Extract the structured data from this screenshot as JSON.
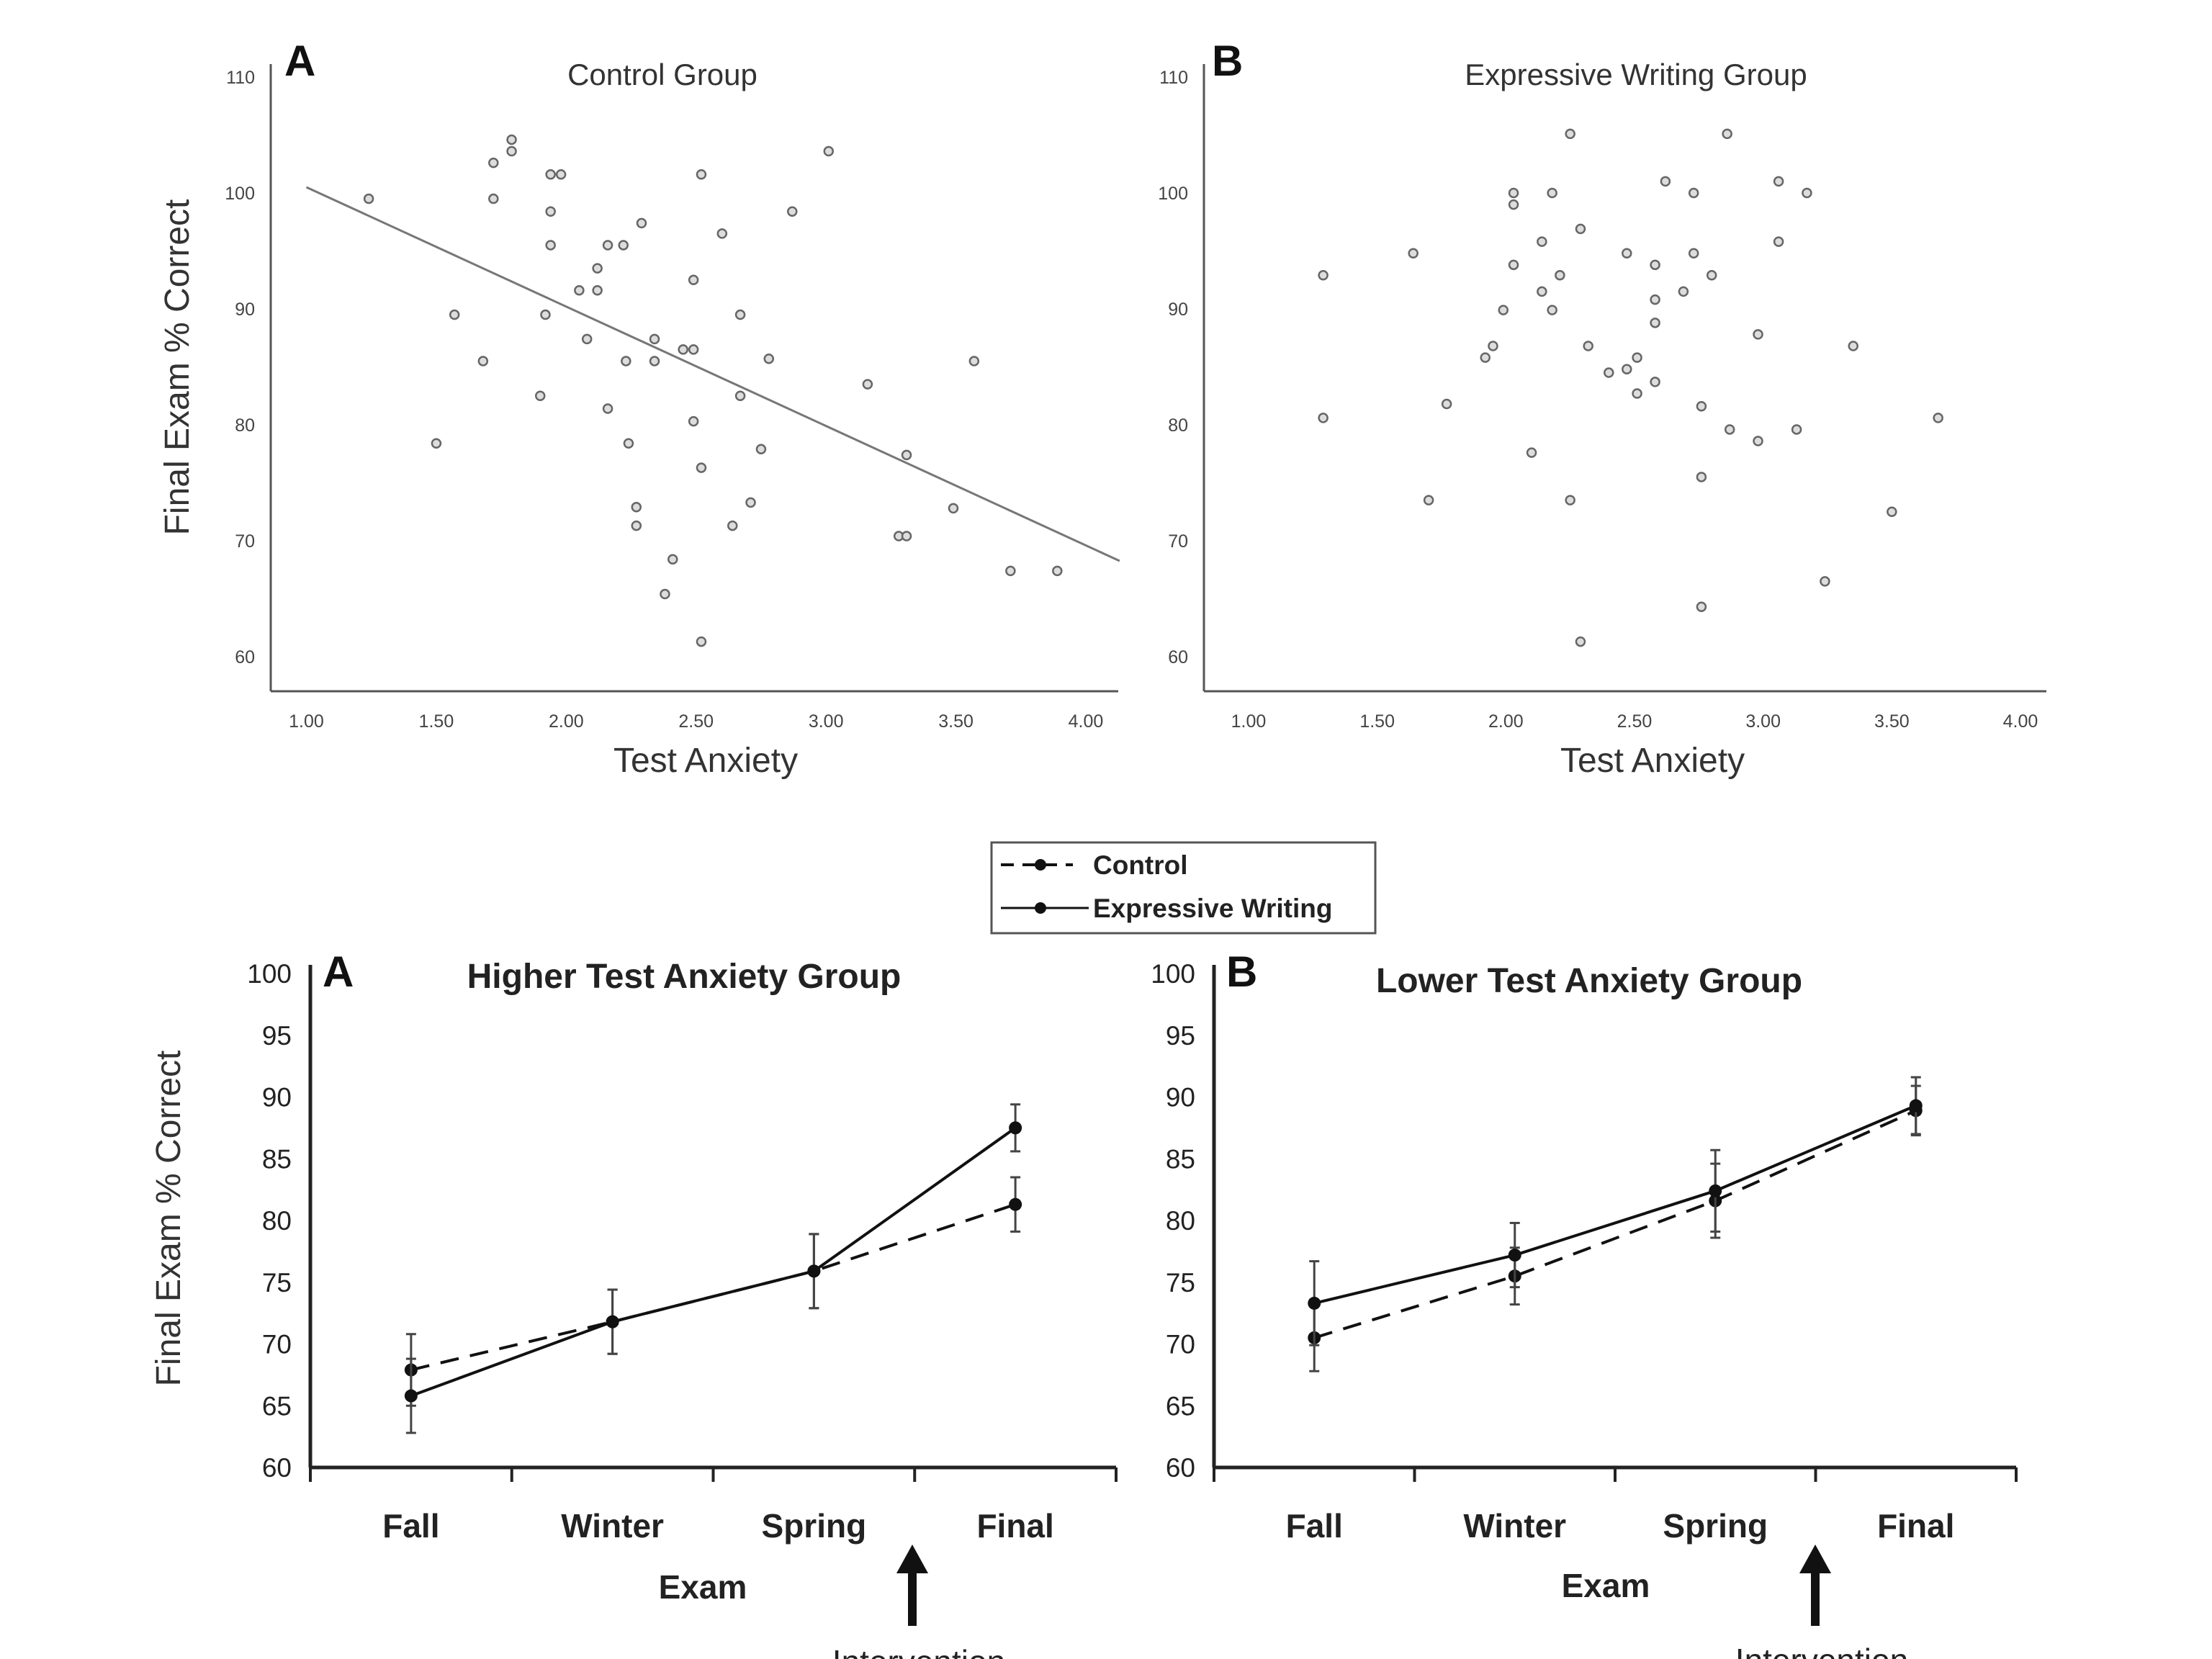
{
  "chart_data": [
    {
      "type": "scatter",
      "panel": "A",
      "title": "Control Group",
      "xlabel": "Test Anxiety",
      "ylabel": "Final Exam % Correct",
      "xlim": [
        0.86,
        4.13
      ],
      "ylim": [
        57.5,
        111
      ],
      "xticks": [
        "1.00",
        "1.50",
        "2.00",
        "2.50",
        "3.00",
        "3.50",
        "4.00"
      ],
      "yticks": [
        "60",
        "70",
        "80",
        "90",
        "100",
        "110"
      ],
      "grid": false,
      "regression_line": {
        "intercept": 110.8,
        "slope": -10.3,
        "x_range": [
          1.0,
          4.13
        ]
      },
      "points": [
        [
          1.24,
          99.5
        ],
        [
          1.72,
          102.6
        ],
        [
          1.79,
          104.6
        ],
        [
          1.79,
          103.6
        ],
        [
          1.72,
          99.5
        ],
        [
          1.94,
          101.6
        ],
        [
          1.98,
          101.6
        ],
        [
          1.94,
          98.4
        ],
        [
          1.94,
          95.5
        ],
        [
          2.29,
          97.4
        ],
        [
          2.16,
          95.5
        ],
        [
          2.22,
          95.5
        ],
        [
          2.12,
          93.5
        ],
        [
          2.05,
          91.6
        ],
        [
          2.12,
          91.6
        ],
        [
          1.57,
          89.5
        ],
        [
          1.92,
          89.5
        ],
        [
          2.49,
          92.5
        ],
        [
          2.6,
          96.5
        ],
        [
          2.52,
          101.6
        ],
        [
          2.87,
          98.4
        ],
        [
          3.01,
          103.6
        ],
        [
          2.08,
          87.4
        ],
        [
          2.34,
          87.4
        ],
        [
          2.45,
          86.5
        ],
        [
          2.49,
          86.5
        ],
        [
          1.68,
          85.5
        ],
        [
          2.23,
          85.5
        ],
        [
          2.34,
          85.5
        ],
        [
          2.67,
          89.5
        ],
        [
          2.78,
          85.7
        ],
        [
          3.16,
          83.5
        ],
        [
          3.57,
          85.5
        ],
        [
          1.9,
          82.5
        ],
        [
          2.67,
          82.5
        ],
        [
          2.16,
          81.4
        ],
        [
          2.49,
          80.3
        ],
        [
          1.5,
          78.4
        ],
        [
          2.24,
          78.4
        ],
        [
          2.75,
          77.9
        ],
        [
          2.52,
          76.3
        ],
        [
          3.31,
          77.4
        ],
        [
          2.27,
          72.9
        ],
        [
          2.27,
          71.3
        ],
        [
          2.71,
          73.3
        ],
        [
          2.64,
          71.3
        ],
        [
          3.28,
          70.4
        ],
        [
          3.31,
          70.4
        ],
        [
          3.49,
          72.8
        ],
        [
          2.41,
          68.4
        ],
        [
          2.38,
          65.4
        ],
        [
          3.71,
          67.4
        ],
        [
          3.89,
          67.4
        ],
        [
          2.52,
          61.3
        ]
      ]
    },
    {
      "type": "scatter",
      "panel": "B",
      "title": "Expressive Writing Group",
      "xlabel": "Test Anxiety",
      "xlim": [
        0.86,
        4.13
      ],
      "ylim": [
        57.5,
        111
      ],
      "xticks": [
        "1.00",
        "1.50",
        "2.00",
        "2.50",
        "3.00",
        "3.50",
        "4.00"
      ],
      "yticks": [
        "60",
        "70",
        "80",
        "90",
        "100",
        "110"
      ],
      "grid": false,
      "points": [
        [
          2.25,
          105.1
        ],
        [
          2.86,
          105.1
        ],
        [
          2.62,
          101
        ],
        [
          3.06,
          101
        ],
        [
          2.03,
          100
        ],
        [
          2.03,
          99
        ],
        [
          2.18,
          100
        ],
        [
          2.73,
          100
        ],
        [
          3.17,
          100
        ],
        [
          2.29,
          96.9
        ],
        [
          2.14,
          95.8
        ],
        [
          3.06,
          95.8
        ],
        [
          1.64,
          94.8
        ],
        [
          2.47,
          94.8
        ],
        [
          2.73,
          94.8
        ],
        [
          2.03,
          93.8
        ],
        [
          2.58,
          93.8
        ],
        [
          1.29,
          92.9
        ],
        [
          2.21,
          92.9
        ],
        [
          2.8,
          92.9
        ],
        [
          2.14,
          91.5
        ],
        [
          2.69,
          91.5
        ],
        [
          1.99,
          89.9
        ],
        [
          2.18,
          89.9
        ],
        [
          2.58,
          90.8
        ],
        [
          2.58,
          88.8
        ],
        [
          2.98,
          87.8
        ],
        [
          1.95,
          86.8
        ],
        [
          2.32,
          86.8
        ],
        [
          3.35,
          86.8
        ],
        [
          1.92,
          85.8
        ],
        [
          2.51,
          85.8
        ],
        [
          2.4,
          84.5
        ],
        [
          2.47,
          84.8
        ],
        [
          2.58,
          83.7
        ],
        [
          2.51,
          82.7
        ],
        [
          1.77,
          81.8
        ],
        [
          2.76,
          81.6
        ],
        [
          1.29,
          80.6
        ],
        [
          3.68,
          80.6
        ],
        [
          2.87,
          79.6
        ],
        [
          3.13,
          79.6
        ],
        [
          2.98,
          78.6
        ],
        [
          2.1,
          77.6
        ],
        [
          2.76,
          75.5
        ],
        [
          1.7,
          73.5
        ],
        [
          2.25,
          73.5
        ],
        [
          3.5,
          72.5
        ],
        [
          3.24,
          66.5
        ],
        [
          2.76,
          64.3
        ],
        [
          2.29,
          61.3
        ]
      ]
    },
    {
      "type": "line",
      "panel": "A",
      "title": "Higher Test Anxiety Group",
      "xlabel": "Exam",
      "ylabel": "Final Exam % Correct",
      "categories": [
        "Fall",
        "Winter",
        "Spring",
        "Final"
      ],
      "ylim": [
        60,
        100
      ],
      "yticks": [
        "60",
        "65",
        "70",
        "75",
        "80",
        "85",
        "90",
        "95",
        "100"
      ],
      "annotation": "Intervention",
      "series": [
        {
          "name": "Control",
          "style": "dashed",
          "values": [
            67.9,
            71.8,
            75.9,
            81.3
          ],
          "error": [
            2.9,
            2.6,
            3.0,
            2.2
          ]
        },
        {
          "name": "Expressive Writing",
          "style": "solid",
          "values": [
            65.8,
            71.8,
            75.9,
            87.5
          ],
          "error": [
            3.0,
            2.6,
            3.0,
            1.9
          ]
        }
      ]
    },
    {
      "type": "line",
      "panel": "B",
      "title": "Lower Test Anxiety Group",
      "xlabel": "Exam",
      "categories": [
        "Fall",
        "Winter",
        "Spring",
        "Final"
      ],
      "ylim": [
        60,
        100
      ],
      "yticks": [
        "60",
        "65",
        "70",
        "75",
        "80",
        "85",
        "90",
        "95",
        "100"
      ],
      "annotation": "Intervention",
      "series": [
        {
          "name": "Control",
          "style": "dashed",
          "values": [
            70.5,
            75.5,
            81.6,
            88.9
          ],
          "error": [
            2.7,
            2.3,
            3.0,
            2.0
          ]
        },
        {
          "name": "Expressive Writing",
          "style": "solid",
          "values": [
            73.3,
            77.2,
            82.4,
            89.3
          ],
          "error": [
            3.4,
            2.6,
            3.3,
            2.3
          ]
        }
      ]
    }
  ],
  "legend": {
    "items": [
      "Control",
      "Expressive Writing"
    ]
  },
  "colors": {
    "axis": "#555555",
    "points": "#666666",
    "lines": "#111111"
  }
}
